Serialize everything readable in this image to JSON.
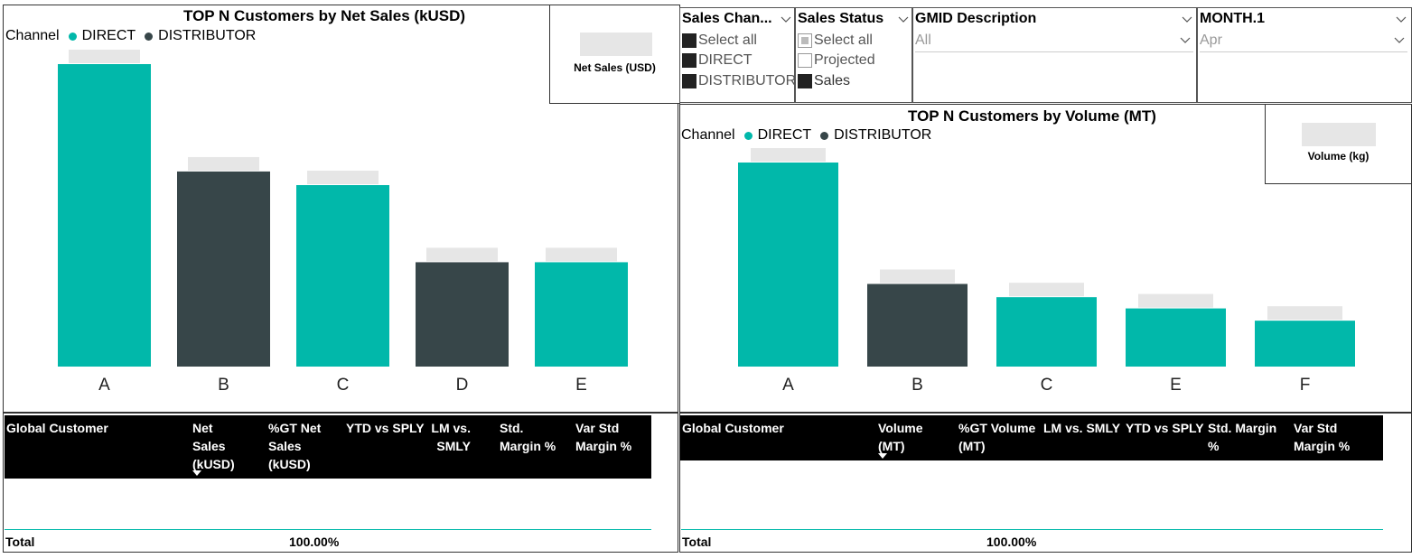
{
  "colors": {
    "direct": "#01b8aa",
    "distributor": "#374649",
    "placeholder": "#e6e6e6"
  },
  "left_chart": {
    "title": "TOP N Customers by Net Sales (kUSD)",
    "legend_title": "Channel",
    "legend": [
      "DIRECT",
      "DISTRIBUTOR"
    ]
  },
  "right_chart": {
    "title": "TOP N Customers by Volume (MT)",
    "legend_title": "Channel",
    "legend": [
      "DIRECT",
      "DISTRIBUTOR"
    ]
  },
  "chart_data": [
    {
      "type": "bar",
      "title": "TOP N Customers by Net Sales (kUSD)",
      "categories": [
        "A",
        "B",
        "C",
        "D",
        "E"
      ],
      "values": [
        100,
        64.5,
        60,
        34.5,
        34.5
      ],
      "channels": [
        "DIRECT",
        "DISTRIBUTOR",
        "DIRECT",
        "DISTRIBUTOR",
        "DIRECT"
      ],
      "legend": "top-left",
      "grid": false
    },
    {
      "type": "bar",
      "title": "TOP N Customers by Volume (MT)",
      "categories": [
        "A",
        "B",
        "C",
        "E",
        "F"
      ],
      "values": [
        100,
        40.5,
        34,
        28.5,
        22.5
      ],
      "channels": [
        "DIRECT",
        "DISTRIBUTOR",
        "DIRECT",
        "DIRECT",
        "DIRECT"
      ],
      "legend": "top-left",
      "grid": false
    }
  ],
  "cards": {
    "net_sales_label": "Net Sales (USD)",
    "volume_label": "Volume (kg)"
  },
  "slicers": {
    "sales_channel": {
      "title": "Sales Chan...",
      "options": [
        "Select all",
        "DIRECT",
        "DISTRIBUTOR"
      ]
    },
    "sales_status": {
      "title": "Sales Status",
      "options": [
        "Select all",
        "Projected",
        "Sales"
      ]
    },
    "gmid": {
      "title": "GMID Description",
      "value": "All"
    },
    "month": {
      "title": "MONTH.1",
      "value": "Apr"
    }
  },
  "left_table": {
    "headers": [
      "Global Customer",
      "Net Sales (kUSD)",
      "%GT Net Sales (kUSD)",
      "YTD vs SPLY",
      "LM vs. SMLY",
      "Std. Margin %",
      "Var Std Margin %"
    ],
    "total_label": "Total",
    "total_pct": "100.00%"
  },
  "right_table": {
    "headers": [
      "Global Customer",
      "Volume (MT)",
      "%GT Volume (MT)",
      "LM vs. SMLY",
      "YTD vs SPLY",
      "Std. Margin %",
      "Var Std Margin %"
    ],
    "total_label": "Total",
    "total_pct": "100.00%"
  }
}
